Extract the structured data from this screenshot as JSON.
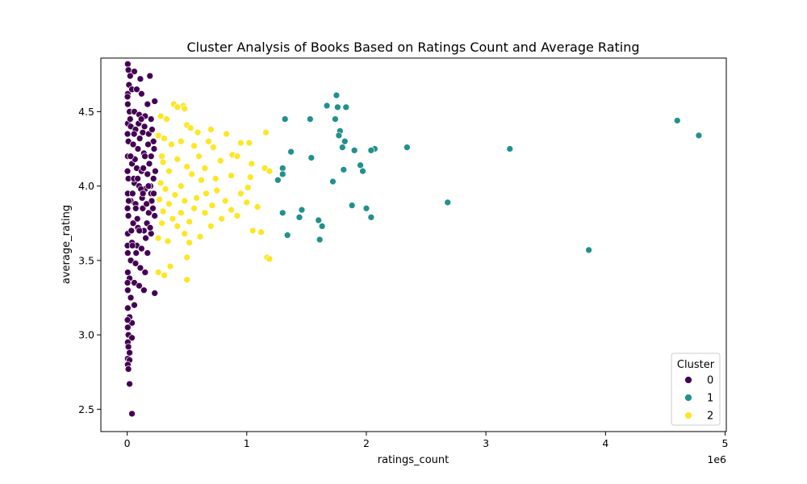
{
  "chart_data": {
    "type": "scatter",
    "title": "Cluster Analysis of Books Based on Ratings Count and Average Rating",
    "xlabel": "ratings_count",
    "ylabel": "average_rating",
    "x_offset_text": "1e6",
    "xlim": [
      -220000,
      5010000
    ],
    "ylim": [
      2.35,
      4.86
    ],
    "x_ticks": [
      0,
      1000000,
      2000000,
      3000000,
      4000000,
      5000000
    ],
    "x_tick_labels": [
      "0",
      "1",
      "2",
      "3",
      "4",
      "5"
    ],
    "y_ticks": [
      2.5,
      3.0,
      3.5,
      4.0,
      4.5
    ],
    "y_tick_labels": [
      "2.5",
      "3.0",
      "3.5",
      "4.0",
      "4.5"
    ],
    "grid": false,
    "legend": {
      "title": "Cluster",
      "placement": "bottom-right"
    },
    "colors": {
      "0": "#440154",
      "1": "#21918c",
      "2": "#fde725"
    },
    "series": [
      {
        "name": "0",
        "color": "#440154",
        "points": [
          [
            5000,
            4.82
          ],
          [
            10000,
            4.78
          ],
          [
            60000,
            4.77
          ],
          [
            110000,
            4.72
          ],
          [
            190000,
            4.74
          ],
          [
            25000,
            4.74
          ],
          [
            15000,
            4.68
          ],
          [
            5000,
            4.62
          ],
          [
            40000,
            4.65
          ],
          [
            80000,
            4.65
          ],
          [
            120000,
            4.62
          ],
          [
            230000,
            4.57
          ],
          [
            170000,
            4.55
          ],
          [
            5000,
            4.55
          ],
          [
            20000,
            4.5
          ],
          [
            60000,
            4.5
          ],
          [
            100000,
            4.48
          ],
          [
            150000,
            4.47
          ],
          [
            200000,
            4.45
          ],
          [
            5000,
            4.42
          ],
          [
            30000,
            4.4
          ],
          [
            70000,
            4.38
          ],
          [
            130000,
            4.36
          ],
          [
            180000,
            4.35
          ],
          [
            220000,
            4.3
          ],
          [
            10000,
            4.3
          ],
          [
            50000,
            4.28
          ],
          [
            90000,
            4.25
          ],
          [
            140000,
            4.22
          ],
          [
            200000,
            4.2
          ],
          [
            5000,
            4.2
          ],
          [
            40000,
            4.15
          ],
          [
            80000,
            4.12
          ],
          [
            120000,
            4.1
          ],
          [
            170000,
            4.08
          ],
          [
            220000,
            4.05
          ],
          [
            10000,
            4.05
          ],
          [
            60000,
            4.02
          ],
          [
            100000,
            4.0
          ],
          [
            150000,
            3.98
          ],
          [
            200000,
            3.95
          ],
          [
            5000,
            3.95
          ],
          [
            30000,
            3.9
          ],
          [
            70000,
            3.88
          ],
          [
            130000,
            3.85
          ],
          [
            180000,
            3.82
          ],
          [
            230000,
            3.8
          ],
          [
            10000,
            3.8
          ],
          [
            50000,
            3.75
          ],
          [
            90000,
            3.72
          ],
          [
            140000,
            3.7
          ],
          [
            200000,
            3.68
          ],
          [
            5000,
            3.68
          ],
          [
            40000,
            3.62
          ],
          [
            80000,
            3.6
          ],
          [
            120000,
            3.58
          ],
          [
            170000,
            3.55
          ],
          [
            5000,
            3.55
          ],
          [
            30000,
            3.5
          ],
          [
            70000,
            3.48
          ],
          [
            110000,
            3.45
          ],
          [
            150000,
            3.42
          ],
          [
            5000,
            3.42
          ],
          [
            20000,
            3.38
          ],
          [
            60000,
            3.35
          ],
          [
            100000,
            3.33
          ],
          [
            140000,
            3.3
          ],
          [
            230000,
            3.28
          ],
          [
            5000,
            3.3
          ],
          [
            30000,
            3.25
          ],
          [
            60000,
            3.2
          ],
          [
            5000,
            3.18
          ],
          [
            20000,
            3.12
          ],
          [
            40000,
            3.08
          ],
          [
            5000,
            3.05
          ],
          [
            10000,
            3.0
          ],
          [
            40000,
            2.98
          ],
          [
            5000,
            2.95
          ],
          [
            10000,
            2.92
          ],
          [
            20000,
            2.88
          ],
          [
            5000,
            2.84
          ],
          [
            20000,
            2.83
          ],
          [
            5000,
            2.8
          ],
          [
            10000,
            2.77
          ],
          [
            20000,
            2.67
          ],
          [
            40000,
            2.47
          ],
          [
            3000,
            4.6
          ],
          [
            3000,
            4.35
          ],
          [
            3000,
            4.1
          ],
          [
            3000,
            3.85
          ],
          [
            3000,
            3.6
          ],
          [
            3000,
            3.35
          ],
          [
            3000,
            3.1
          ],
          [
            25000,
            4.45
          ],
          [
            45000,
            3.95
          ],
          [
            65000,
            4.18
          ],
          [
            85000,
            3.78
          ],
          [
            105000,
            4.32
          ],
          [
            125000,
            3.92
          ],
          [
            145000,
            4.4
          ],
          [
            165000,
            3.75
          ],
          [
            185000,
            4.15
          ],
          [
            205000,
            3.9
          ],
          [
            225000,
            4.25
          ],
          [
            35000,
            3.7
          ],
          [
            55000,
            4.05
          ],
          [
            75000,
            3.55
          ],
          [
            95000,
            4.42
          ],
          [
            115000,
            3.98
          ],
          [
            135000,
            4.12
          ],
          [
            155000,
            3.65
          ],
          [
            175000,
            4.28
          ],
          [
            195000,
            4.0
          ],
          [
            215000,
            3.85
          ],
          [
            235000,
            4.1
          ],
          [
            12000,
            3.9
          ],
          [
            28000,
            4.2
          ],
          [
            44000,
            3.6
          ],
          [
            58000,
            4.35
          ],
          [
            72000,
            3.85
          ],
          [
            88000,
            4.05
          ],
          [
            102000,
            3.7
          ],
          [
            118000,
            4.45
          ],
          [
            132000,
            3.95
          ],
          [
            148000,
            4.2
          ],
          [
            162000,
            3.88
          ],
          [
            178000,
            4.0
          ],
          [
            192000,
            3.72
          ],
          [
            208000,
            4.38
          ],
          [
            222000,
            3.95
          ]
        ]
      },
      {
        "name": "1",
        "color": "#21918c",
        "points": [
          [
            1750000,
            4.61
          ],
          [
            1670000,
            4.54
          ],
          [
            1760000,
            4.53
          ],
          [
            1830000,
            4.53
          ],
          [
            1320000,
            4.45
          ],
          [
            1530000,
            4.45
          ],
          [
            1740000,
            4.45
          ],
          [
            1780000,
            4.37
          ],
          [
            1770000,
            4.34
          ],
          [
            1820000,
            4.3
          ],
          [
            1800000,
            4.26
          ],
          [
            2340000,
            4.26
          ],
          [
            2070000,
            4.25
          ],
          [
            3200000,
            4.25
          ],
          [
            2040000,
            4.24
          ],
          [
            1900000,
            4.24
          ],
          [
            1370000,
            4.23
          ],
          [
            1540000,
            4.19
          ],
          [
            1950000,
            4.14
          ],
          [
            1300000,
            4.12
          ],
          [
            1810000,
            4.11
          ],
          [
            1970000,
            4.1
          ],
          [
            1300000,
            4.08
          ],
          [
            1260000,
            4.04
          ],
          [
            1720000,
            4.03
          ],
          [
            2680000,
            3.89
          ],
          [
            1880000,
            3.87
          ],
          [
            2000000,
            3.85
          ],
          [
            1460000,
            3.84
          ],
          [
            1300000,
            3.82
          ],
          [
            1440000,
            3.79
          ],
          [
            2040000,
            3.79
          ],
          [
            1600000,
            3.77
          ],
          [
            1630000,
            3.73
          ],
          [
            1340000,
            3.67
          ],
          [
            1610000,
            3.64
          ],
          [
            3860000,
            3.57
          ],
          [
            4600000,
            4.44
          ],
          [
            4780000,
            4.34
          ]
        ]
      },
      {
        "name": "2",
        "color": "#fde725",
        "points": [
          [
            390000,
            4.55
          ],
          [
            470000,
            4.54
          ],
          [
            420000,
            4.53
          ],
          [
            480000,
            4.52
          ],
          [
            280000,
            4.47
          ],
          [
            330000,
            4.45
          ],
          [
            500000,
            4.41
          ],
          [
            530000,
            4.39
          ],
          [
            700000,
            4.38
          ],
          [
            590000,
            4.36
          ],
          [
            1160000,
            4.36
          ],
          [
            830000,
            4.35
          ],
          [
            260000,
            4.34
          ],
          [
            310000,
            4.32
          ],
          [
            450000,
            4.3
          ],
          [
            680000,
            4.3
          ],
          [
            950000,
            4.29
          ],
          [
            1020000,
            4.29
          ],
          [
            370000,
            4.28
          ],
          [
            560000,
            4.27
          ],
          [
            720000,
            4.26
          ],
          [
            880000,
            4.21
          ],
          [
            600000,
            4.2
          ],
          [
            290000,
            4.2
          ],
          [
            920000,
            4.2
          ],
          [
            420000,
            4.18
          ],
          [
            780000,
            4.17
          ],
          [
            300000,
            4.16
          ],
          [
            1040000,
            4.15
          ],
          [
            500000,
            4.13
          ],
          [
            650000,
            4.12
          ],
          [
            1150000,
            4.12
          ],
          [
            350000,
            4.1
          ],
          [
            1190000,
            4.1
          ],
          [
            540000,
            4.08
          ],
          [
            870000,
            4.07
          ],
          [
            1030000,
            4.06
          ],
          [
            740000,
            4.05
          ],
          [
            620000,
            4.04
          ],
          [
            280000,
            4.02
          ],
          [
            450000,
            4.0
          ],
          [
            1010000,
            3.99
          ],
          [
            320000,
            3.98
          ],
          [
            750000,
            3.97
          ],
          [
            660000,
            3.95
          ],
          [
            950000,
            3.95
          ],
          [
            400000,
            3.94
          ],
          [
            580000,
            3.92
          ],
          [
            270000,
            3.91
          ],
          [
            820000,
            3.9
          ],
          [
            480000,
            3.9
          ],
          [
            1000000,
            3.89
          ],
          [
            350000,
            3.88
          ],
          [
            710000,
            3.87
          ],
          [
            1090000,
            3.86
          ],
          [
            560000,
            3.85
          ],
          [
            870000,
            3.84
          ],
          [
            300000,
            3.83
          ],
          [
            450000,
            3.82
          ],
          [
            650000,
            3.82
          ],
          [
            920000,
            3.8
          ],
          [
            380000,
            3.78
          ],
          [
            790000,
            3.78
          ],
          [
            520000,
            3.76
          ],
          [
            290000,
            3.75
          ],
          [
            700000,
            3.73
          ],
          [
            420000,
            3.73
          ],
          [
            1050000,
            3.7
          ],
          [
            1120000,
            3.69
          ],
          [
            480000,
            3.68
          ],
          [
            610000,
            3.66
          ],
          [
            260000,
            3.65
          ],
          [
            340000,
            3.63
          ],
          [
            520000,
            3.62
          ],
          [
            1170000,
            3.52
          ],
          [
            1190000,
            3.51
          ],
          [
            500000,
            3.52
          ],
          [
            360000,
            3.46
          ],
          [
            260000,
            3.42
          ],
          [
            310000,
            3.4
          ],
          [
            500000,
            3.37
          ]
        ]
      }
    ]
  }
}
